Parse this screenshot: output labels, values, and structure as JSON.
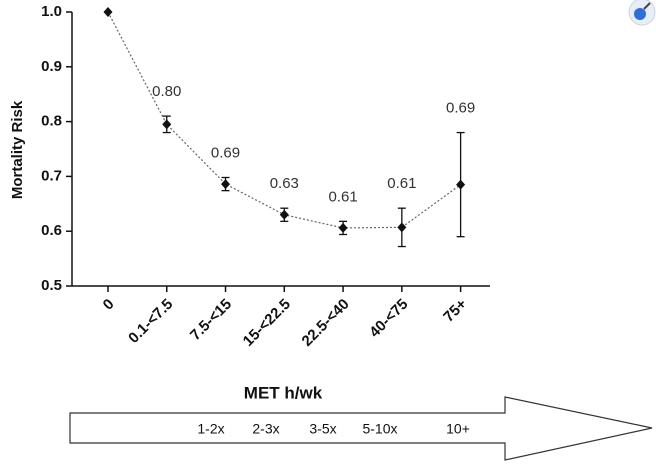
{
  "chart_data": {
    "type": "line",
    "y_label": "Mortality Risk",
    "x_label": "MET h/wk",
    "categories": [
      "0",
      "0.1-<7.5",
      "7.5-<15",
      "15-<22.5",
      "22.5-<40",
      "40-<75",
      "75+"
    ],
    "values": [
      1.0,
      0.795,
      0.686,
      0.63,
      0.606,
      0.607,
      0.685
    ],
    "value_labels": [
      null,
      "0.80",
      "0.69",
      "0.63",
      "0.61",
      "0.61",
      "0.69"
    ],
    "errors": [
      null,
      0.015,
      0.012,
      0.012,
      0.012,
      0.035,
      0.095
    ],
    "color": "#111111",
    "ylim": [
      0.5,
      1.0
    ],
    "yticks": [
      0.5,
      0.6,
      0.7,
      0.8,
      0.9,
      {
        "value": 1,
        "label": "1.0"
      }
    ],
    "arrow_labels": [
      "1-2x",
      "2-3x",
      "3-5x",
      "5-10x",
      "10+"
    ]
  }
}
